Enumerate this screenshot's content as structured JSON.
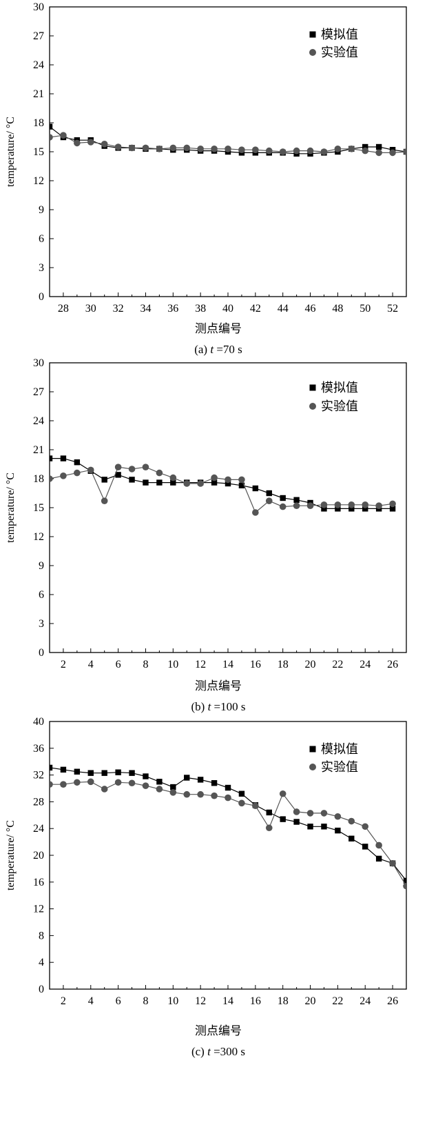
{
  "colors": {
    "sim": "#000000",
    "exp": "#555555",
    "axis": "#000000"
  },
  "chart_data": [
    {
      "type": "line",
      "panel": "a",
      "caption_prefix": "(a) ",
      "caption_var": "t",
      "caption_suffix": " =70 s",
      "xlabel": "测点编号",
      "ylabel": "temperature/ °C",
      "xlim": [
        27,
        53
      ],
      "ylim": [
        0,
        30
      ],
      "xticks": [
        28,
        30,
        32,
        34,
        36,
        38,
        40,
        42,
        44,
        46,
        48,
        50,
        52
      ],
      "yticks": [
        0,
        3,
        6,
        9,
        12,
        15,
        18,
        21,
        24,
        27,
        30
      ],
      "legend_position": "top-right",
      "series": [
        {
          "name": "模拟值",
          "marker": "square",
          "x": [
            27,
            28,
            29,
            30,
            31,
            32,
            33,
            34,
            35,
            36,
            37,
            38,
            39,
            40,
            41,
            42,
            43,
            44,
            45,
            46,
            47,
            48,
            49,
            50,
            51,
            52,
            53
          ],
          "values": [
            17.6,
            16.5,
            16.2,
            16.2,
            15.6,
            15.4,
            15.4,
            15.3,
            15.3,
            15.2,
            15.2,
            15.1,
            15.1,
            15.0,
            14.9,
            14.9,
            14.9,
            14.9,
            14.8,
            14.8,
            14.9,
            15.0,
            15.3,
            15.5,
            15.5,
            15.2,
            15.0
          ]
        },
        {
          "name": "实验值",
          "marker": "circle",
          "x": [
            27,
            28,
            29,
            30,
            31,
            32,
            33,
            34,
            35,
            36,
            37,
            38,
            39,
            40,
            41,
            42,
            43,
            44,
            45,
            46,
            47,
            48,
            49,
            50,
            51,
            52,
            53
          ],
          "values": [
            16.5,
            16.7,
            15.9,
            16.0,
            15.8,
            15.5,
            15.4,
            15.4,
            15.3,
            15.4,
            15.4,
            15.3,
            15.3,
            15.3,
            15.2,
            15.2,
            15.1,
            15.0,
            15.1,
            15.1,
            15.0,
            15.3,
            15.3,
            15.1,
            14.9,
            14.9,
            15.0
          ]
        }
      ]
    },
    {
      "type": "line",
      "panel": "b",
      "caption_prefix": "(b) ",
      "caption_var": "t",
      "caption_suffix": " =100 s",
      "xlabel": "测点编号",
      "ylabel": "temperature/ °C",
      "xlim": [
        1,
        27
      ],
      "ylim": [
        0,
        30
      ],
      "xticks": [
        2,
        4,
        6,
        8,
        10,
        12,
        14,
        16,
        18,
        20,
        22,
        24,
        26
      ],
      "yticks": [
        0,
        3,
        6,
        9,
        12,
        15,
        18,
        21,
        24,
        27,
        30
      ],
      "legend_position": "top-right",
      "series": [
        {
          "name": "模拟值",
          "marker": "square",
          "x": [
            1,
            2,
            3,
            4,
            5,
            6,
            7,
            8,
            9,
            10,
            11,
            12,
            13,
            14,
            15,
            16,
            17,
            18,
            19,
            20,
            21,
            22,
            23,
            24,
            25,
            26
          ],
          "values": [
            20.1,
            20.1,
            19.7,
            18.8,
            17.9,
            18.4,
            17.9,
            17.6,
            17.6,
            17.6,
            17.6,
            17.6,
            17.6,
            17.5,
            17.3,
            17.0,
            16.5,
            16.0,
            15.8,
            15.5,
            14.9,
            14.9,
            14.9,
            14.9,
            14.9,
            14.9
          ]
        },
        {
          "name": "实验值",
          "marker": "circle",
          "x": [
            1,
            2,
            3,
            4,
            5,
            6,
            7,
            8,
            9,
            10,
            11,
            12,
            13,
            14,
            15,
            16,
            17,
            18,
            19,
            20,
            21,
            22,
            23,
            24,
            25,
            26
          ],
          "values": [
            18.0,
            18.3,
            18.6,
            18.9,
            15.7,
            19.2,
            19.0,
            19.2,
            18.6,
            18.1,
            17.5,
            17.5,
            18.1,
            17.9,
            17.9,
            14.5,
            15.7,
            15.1,
            15.2,
            15.2,
            15.3,
            15.3,
            15.3,
            15.3,
            15.2,
            15.4
          ]
        }
      ]
    },
    {
      "type": "line",
      "panel": "c",
      "caption_prefix": "(c) ",
      "caption_var": "t",
      "caption_suffix": " =300 s",
      "xlabel": "测点编号",
      "ylabel": "temperature/ °C",
      "xlim": [
        1,
        27
      ],
      "ylim": [
        0,
        40
      ],
      "xticks": [
        2,
        4,
        6,
        8,
        10,
        12,
        14,
        16,
        18,
        20,
        22,
        24,
        26
      ],
      "yticks": [
        0,
        4,
        8,
        12,
        16,
        20,
        24,
        28,
        32,
        36,
        40
      ],
      "legend_position": "top-right",
      "series": [
        {
          "name": "模拟值",
          "marker": "square",
          "x": [
            1,
            2,
            3,
            4,
            5,
            6,
            7,
            8,
            9,
            10,
            11,
            12,
            13,
            14,
            15,
            16,
            17,
            18,
            19,
            20,
            21,
            22,
            23,
            24,
            25,
            26,
            27
          ],
          "values": [
            33.1,
            32.8,
            32.5,
            32.3,
            32.3,
            32.4,
            32.3,
            31.8,
            31.0,
            30.2,
            31.6,
            31.3,
            30.8,
            30.1,
            29.2,
            27.5,
            26.4,
            25.4,
            25.0,
            24.3,
            24.3,
            23.7,
            22.5,
            21.3,
            19.5,
            18.8,
            16.2
          ]
        },
        {
          "name": "实验值",
          "marker": "circle",
          "x": [
            1,
            2,
            3,
            4,
            5,
            6,
            7,
            8,
            9,
            10,
            11,
            12,
            13,
            14,
            15,
            16,
            17,
            18,
            19,
            20,
            21,
            22,
            23,
            24,
            25,
            26,
            27
          ],
          "values": [
            30.6,
            30.6,
            30.9,
            31.0,
            29.9,
            30.9,
            30.8,
            30.4,
            29.9,
            29.4,
            29.1,
            29.1,
            28.9,
            28.6,
            27.8,
            27.4,
            24.1,
            29.2,
            26.5,
            26.3,
            26.3,
            25.8,
            25.1,
            24.3,
            21.5,
            18.8,
            15.4
          ]
        }
      ]
    }
  ]
}
